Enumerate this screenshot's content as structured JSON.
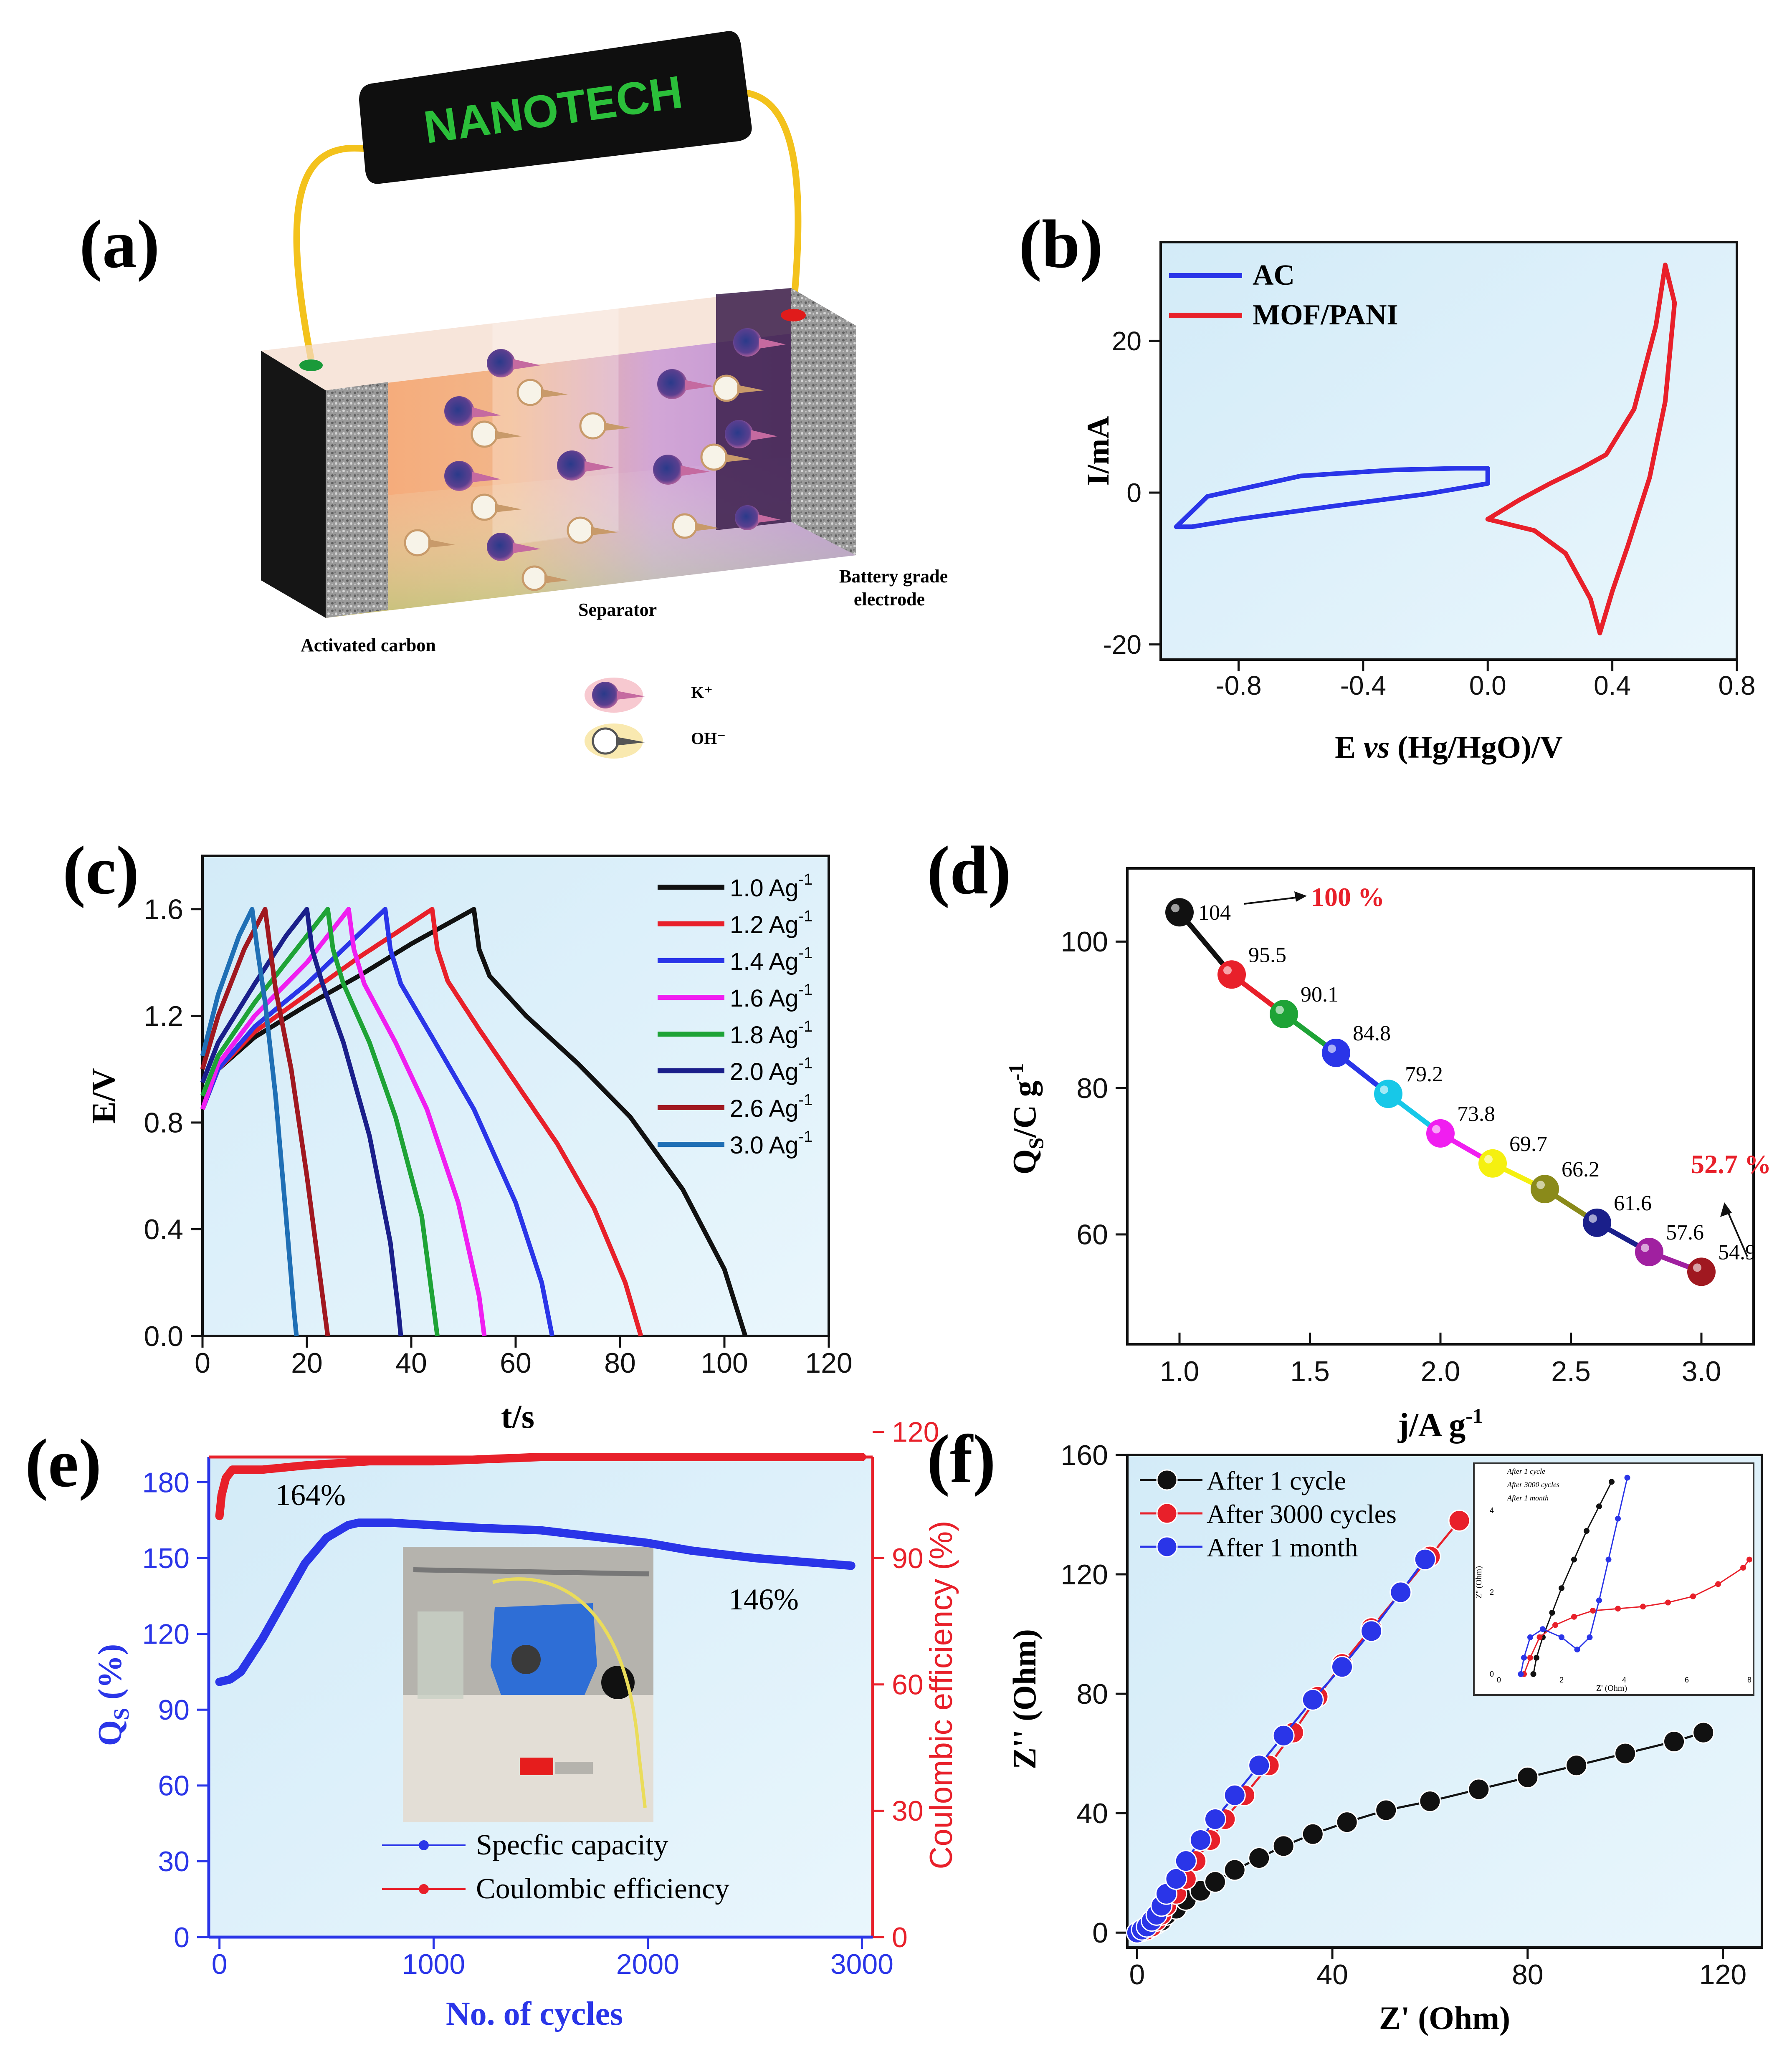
{
  "figure": {
    "panel_labels": [
      "(a)",
      "(b)",
      "(c)",
      "(d)",
      "(e)",
      "(f)"
    ],
    "colors": {
      "red": "#e8202a",
      "blue": "#2a35e8",
      "black": "#111111",
      "green": "#1ea336",
      "magenta": "#f01ef0",
      "navy": "#1a1f8a",
      "darkred": "#a01820",
      "steel": "#1f6fb5",
      "bg": "#dff1fb"
    }
  },
  "schematic": {
    "device_label": "NANOTECH",
    "left_electrode": "Activated carbon",
    "separator": "Separator",
    "right_electrode_line1": "Battery grade",
    "right_electrode_line2": "electrode",
    "legend_cation": "K⁺",
    "legend_anion": "OH⁻"
  },
  "chart_data": [
    {
      "panel": "(b)",
      "type": "line",
      "xlabel": "E vs (Hg/HgO)/V",
      "ylabel": "I/mA",
      "xlim": [
        -1.05,
        0.8
      ],
      "ylim": [
        -22,
        33
      ],
      "xticks": [
        -0.8,
        -0.4,
        0.0,
        0.4,
        0.8
      ],
      "xtick_labels": [
        "-0.8",
        "-0.4",
        "0.0",
        "0.4",
        "0.8"
      ],
      "yticks": [
        -20,
        0,
        20
      ],
      "ytick_labels": [
        "-20",
        "0",
        "20"
      ],
      "series": [
        {
          "name": "AC",
          "color": "#2a35e8",
          "x": [
            -1.0,
            -0.9,
            -0.6,
            -0.3,
            -0.1,
            0.0,
            0.0,
            -0.2,
            -0.5,
            -0.8,
            -0.95,
            -1.0
          ],
          "y": [
            -4.5,
            -0.5,
            2.2,
            3.0,
            3.2,
            3.2,
            1.2,
            -0.2,
            -1.8,
            -3.5,
            -4.5,
            -4.5
          ]
        },
        {
          "name": "MOF/PANI",
          "color": "#e8202a",
          "x": [
            0.0,
            0.1,
            0.2,
            0.3,
            0.38,
            0.47,
            0.54,
            0.57,
            0.6,
            0.57,
            0.52,
            0.45,
            0.4,
            0.36,
            0.33,
            0.25,
            0.15,
            0.05,
            0.0
          ],
          "y": [
            -3.5,
            -1.0,
            1.2,
            3.2,
            5.0,
            11.0,
            22.0,
            30.0,
            25.0,
            12.0,
            2.0,
            -7.0,
            -13.0,
            -18.5,
            -14.0,
            -8.0,
            -5.0,
            -4.0,
            -3.5
          ]
        }
      ]
    },
    {
      "panel": "(c)",
      "type": "line",
      "xlabel": "t/s",
      "ylabel": "E/V",
      "xlim": [
        0,
        120
      ],
      "ylim": [
        0,
        1.8
      ],
      "xticks": [
        0,
        20,
        40,
        60,
        80,
        100,
        120
      ],
      "xtick_labels": [
        "0",
        "20",
        "40",
        "60",
        "80",
        "100",
        "120"
      ],
      "yticks": [
        0.0,
        0.4,
        0.8,
        1.2,
        1.6
      ],
      "ytick_labels": [
        "0.0",
        "0.4",
        "0.8",
        "1.2",
        "1.6"
      ],
      "series": [
        {
          "name": "1.0 Ag",
          "color": "#111111",
          "x": [
            0,
            3,
            10,
            20,
            30,
            40,
            52,
            53,
            55,
            62,
            72,
            82,
            92,
            100,
            104
          ],
          "y": [
            0.85,
            1.0,
            1.12,
            1.24,
            1.35,
            1.47,
            1.6,
            1.45,
            1.35,
            1.2,
            1.02,
            0.82,
            0.55,
            0.25,
            0.0
          ]
        },
        {
          "name": "1.2 Ag",
          "color": "#e8202a",
          "x": [
            0,
            3,
            10,
            20,
            30,
            44,
            45,
            47,
            53,
            60,
            68,
            75,
            81,
            84
          ],
          "y": [
            0.85,
            1.0,
            1.14,
            1.28,
            1.42,
            1.6,
            1.45,
            1.33,
            1.15,
            0.95,
            0.72,
            0.48,
            0.2,
            0.0
          ]
        },
        {
          "name": "1.4 Ag",
          "color": "#2a35e8",
          "x": [
            0,
            3,
            10,
            20,
            35,
            36,
            38,
            44,
            52,
            60,
            65,
            67
          ],
          "y": [
            0.85,
            1.0,
            1.16,
            1.32,
            1.6,
            1.45,
            1.32,
            1.12,
            0.85,
            0.5,
            0.2,
            0.0
          ]
        },
        {
          "name": "1.6 Ag",
          "color": "#f01ef0",
          "x": [
            0,
            3,
            10,
            20,
            28,
            29,
            31,
            37,
            43,
            49,
            53,
            54
          ],
          "y": [
            0.85,
            1.02,
            1.2,
            1.4,
            1.6,
            1.45,
            1.32,
            1.1,
            0.85,
            0.5,
            0.15,
            0.0
          ]
        },
        {
          "name": "1.8 Ag",
          "color": "#1ea336",
          "x": [
            0,
            3,
            10,
            18,
            24,
            25,
            27,
            32,
            37,
            42,
            44,
            45
          ],
          "y": [
            0.9,
            1.05,
            1.25,
            1.45,
            1.6,
            1.45,
            1.32,
            1.1,
            0.82,
            0.45,
            0.15,
            0.0
          ]
        },
        {
          "name": "2.0 Ag",
          "color": "#1a1f8a",
          "x": [
            0,
            3,
            10,
            16,
            20,
            21,
            23,
            27,
            32,
            36,
            37.5,
            38
          ],
          "y": [
            0.95,
            1.1,
            1.32,
            1.5,
            1.6,
            1.45,
            1.32,
            1.1,
            0.75,
            0.35,
            0.1,
            0.0
          ]
        },
        {
          "name": "2.6 Ag",
          "color": "#a01820",
          "x": [
            0,
            3,
            8,
            12,
            13,
            14,
            17,
            20,
            23,
            24
          ],
          "y": [
            1.0,
            1.2,
            1.45,
            1.6,
            1.45,
            1.3,
            1.0,
            0.6,
            0.15,
            0.0
          ]
        },
        {
          "name": "3.0 Ag",
          "color": "#1f6fb5",
          "x": [
            0,
            3,
            7,
            9.5,
            10.5,
            12,
            14,
            16,
            17.5,
            18
          ],
          "y": [
            1.05,
            1.28,
            1.5,
            1.6,
            1.45,
            1.25,
            0.9,
            0.45,
            0.1,
            0.0
          ]
        }
      ]
    },
    {
      "panel": "(d)",
      "type": "scatter",
      "xlabel": "j/A g",
      "ylabel": "Q",
      "xlim": [
        0.8,
        3.2
      ],
      "ylim": [
        45,
        110
      ],
      "xticks": [
        1.0,
        1.5,
        2.0,
        2.5,
        3.0
      ],
      "xtick_labels": [
        "1.0",
        "1.5",
        "2.0",
        "2.5",
        "3.0"
      ],
      "yticks": [
        60,
        80,
        100
      ],
      "ytick_labels": [
        "60",
        "80",
        "100"
      ],
      "x": [
        1.0,
        1.2,
        1.4,
        1.6,
        1.8,
        2.0,
        2.2,
        2.4,
        2.6,
        2.8,
        3.0
      ],
      "y": [
        104,
        95.5,
        90.1,
        84.8,
        79.2,
        73.8,
        69.7,
        66.2,
        61.6,
        57.6,
        54.9
      ],
      "labels": [
        "104",
        "95.5",
        "90.1",
        "84.8",
        "79.2",
        "73.8",
        "69.7",
        "66.2",
        "61.6",
        "57.6",
        "54.9"
      ],
      "point_colors": [
        "#111111",
        "#e8202a",
        "#1ea336",
        "#2a35e8",
        "#17c8e8",
        "#f01ef0",
        "#f5f010",
        "#8a8a1a",
        "#1a1f8a",
        "#a020a0",
        "#a01820"
      ],
      "segment_colors": [
        "#111111",
        "#e8202a",
        "#1ea336",
        "#2a35e8",
        "#17c8e8",
        "#f01ef0",
        "#f5f010",
        "#8a8a1a",
        "#1a1f8a",
        "#a020a0"
      ],
      "annotations": [
        "100 %",
        "52.7 %"
      ]
    },
    {
      "panel": "(e)",
      "type": "line",
      "xlabel": "No. of cycles",
      "ylabel_left": "Q",
      "ylabel_right": "Coulombic efficiency (%)",
      "xlim": [
        -50,
        3050
      ],
      "ylim_left": [
        0,
        190
      ],
      "ylim_right": [
        0,
        114
      ],
      "xticks": [
        0,
        1000,
        2000,
        3000
      ],
      "xtick_labels": [
        "0",
        "1000",
        "2000",
        "3000"
      ],
      "yticks_left": [
        0,
        30,
        60,
        90,
        120,
        150,
        180
      ],
      "ytick_labels_left": [
        "0",
        "30",
        "60",
        "90",
        "120",
        "150",
        "180"
      ],
      "yticks_right": [
        0,
        30,
        60,
        90,
        120
      ],
      "ytick_labels_right": [
        "0",
        "30",
        "60",
        "90",
        "120"
      ],
      "series": [
        {
          "name": "Specfic capacity",
          "color": "#2a35e8",
          "axis": "left",
          "x": [
            0,
            50,
            100,
            200,
            300,
            400,
            500,
            600,
            650,
            700,
            800,
            1000,
            1200,
            1500,
            1800,
            2000,
            2200,
            2500,
            2800,
            2950
          ],
          "y": [
            101,
            102,
            105,
            118,
            133,
            148,
            158,
            163,
            164,
            164,
            164,
            163,
            162,
            161,
            158,
            156,
            153,
            150,
            148,
            147
          ]
        },
        {
          "name": "Coulombic efficiency",
          "color": "#e8202a",
          "axis": "right",
          "x": [
            0,
            10,
            30,
            60,
            100,
            200,
            400,
            700,
            1000,
            1500,
            2000,
            2500,
            3000
          ],
          "y": [
            100,
            105,
            109,
            111,
            111,
            111,
            112,
            113,
            113,
            114,
            114,
            114,
            114
          ]
        }
      ],
      "annotations": [
        "164%",
        "146%"
      ]
    },
    {
      "panel": "(f)",
      "type": "line",
      "xlabel": "Z' (Ohm)",
      "ylabel": "Z'' (Ohm)",
      "xlim": [
        -2,
        128
      ],
      "ylim": [
        -5,
        160
      ],
      "xticks": [
        0,
        40,
        80,
        120
      ],
      "xtick_labels": [
        "0",
        "40",
        "80",
        "120"
      ],
      "yticks": [
        0,
        40,
        80,
        120,
        160
      ],
      "ytick_labels": [
        "0",
        "40",
        "80",
        "120",
        "160"
      ],
      "series": [
        {
          "name": "After 1 cycle",
          "color": "#111111",
          "x": [
            0,
            1,
            2,
            3,
            4,
            5,
            6,
            8,
            10,
            13,
            16,
            20,
            25,
            30,
            36,
            43,
            51,
            60,
            70,
            80,
            90,
            100,
            110,
            116
          ],
          "y": [
            0,
            0.5,
            1,
            2,
            3,
            4,
            6,
            8,
            11,
            14,
            17,
            21,
            25,
            29,
            33,
            37,
            41,
            44,
            48,
            52,
            56,
            60,
            64,
            67
          ]
        },
        {
          "name": "After 3000 cycles",
          "color": "#e8202a",
          "x": [
            0,
            2,
            3,
            4,
            5,
            6,
            8,
            10,
            12,
            15,
            18,
            22,
            27,
            32,
            37,
            42,
            48,
            54,
            60,
            66
          ],
          "y": [
            0,
            1,
            2,
            4,
            6,
            9,
            13,
            18,
            24,
            31,
            38,
            46,
            56,
            67,
            79,
            90,
            102,
            114,
            126,
            138
          ]
        },
        {
          "name": "After 1 month",
          "color": "#2a35e8",
          "x": [
            0,
            1,
            2,
            3,
            4,
            5,
            6,
            8,
            10,
            13,
            16,
            20,
            25,
            30,
            36,
            42,
            48,
            54,
            59
          ],
          "y": [
            0,
            1,
            2,
            4,
            6,
            9,
            13,
            18,
            24,
            31,
            38,
            46,
            56,
            66,
            78,
            89,
            101,
            114,
            125
          ]
        }
      ],
      "inset": {
        "xlabel": "Z' (Ohm)",
        "ylabel": "Z'' (Ohm)",
        "legend": [
          "After 1 cycle",
          "After 3000 cycles",
          "After 1 month"
        ],
        "xtick_labels": [
          "0",
          "2",
          "4",
          "6",
          "8"
        ],
        "ytick_labels": [
          "0",
          "2",
          "4"
        ]
      }
    }
  ]
}
